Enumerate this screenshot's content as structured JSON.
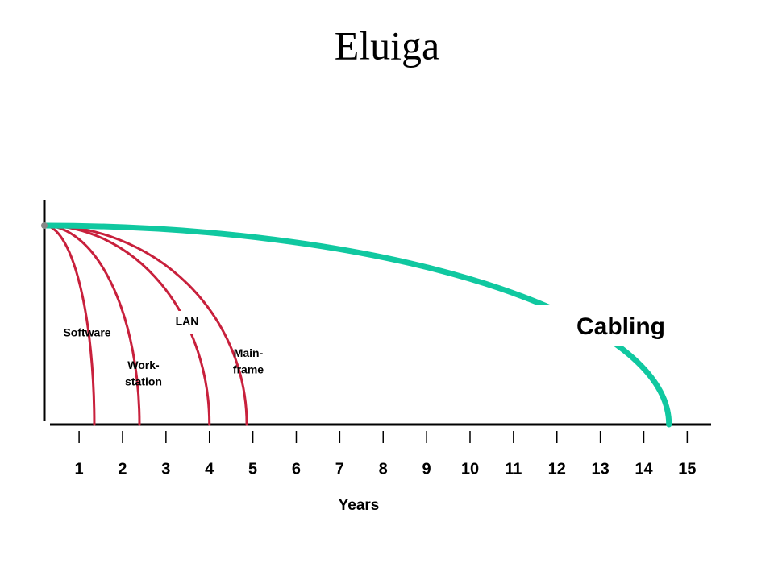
{
  "chart_data": {
    "type": "lifespan",
    "title": "Eluiga",
    "xlabel": "Years",
    "xlim": [
      0.2,
      15.55
    ],
    "xticks": [
      1,
      2,
      3,
      4,
      5,
      6,
      7,
      8,
      9,
      10,
      11,
      12,
      13,
      14,
      15
    ],
    "series": [
      {
        "name": "Software",
        "color": "#c8203c",
        "end": 1.35
      },
      {
        "name": "Work-\nstation",
        "color": "#c8203c",
        "end": 2.39
      },
      {
        "name": "LAN",
        "color": "#c8203c",
        "end": 4.0
      },
      {
        "name": "Main-\nframe",
        "color": "#c8203c",
        "end": 4.86
      },
      {
        "name": "Cabling",
        "color": "#10c8a0",
        "end": 14.58
      }
    ]
  }
}
